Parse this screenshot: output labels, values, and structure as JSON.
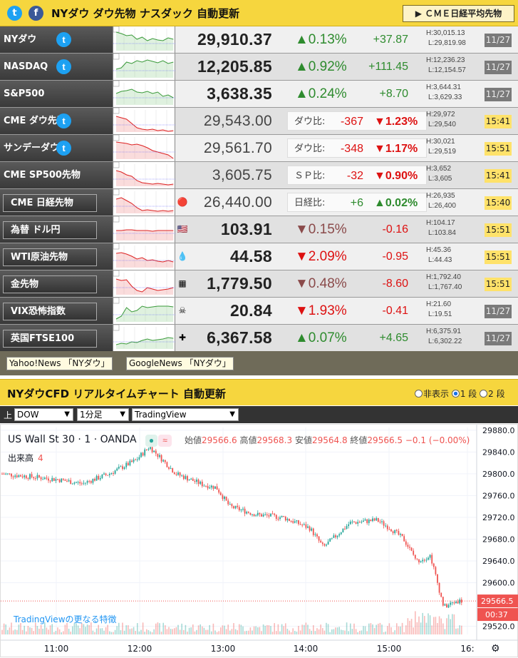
{
  "header": {
    "title": "NYダウ ダウ先物 ナスダック 自動更新",
    "cme_button": "ＣＭＥ日経平均先物",
    "cme_arrow": "▶"
  },
  "rows": [
    {
      "name": "NYダウ",
      "price": "29,910.37",
      "pct": "▲0.13%",
      "chg": "+37.87",
      "high": "H:30,015.13",
      "low": "L:29,819.98",
      "time": "11/27"
    },
    {
      "name": "NASDAQ",
      "price": "12,205.85",
      "pct": "▲0.92%",
      "chg": "+111.45",
      "high": "H:12,236.23",
      "low": "L:12,154.57",
      "time": "11/27"
    },
    {
      "name": "S&P500",
      "price": "3,638.35",
      "pct": "▲0.24%",
      "chg": "+8.70",
      "high": "H:3,644.31",
      "low": "L:3,629.33",
      "time": "11/27"
    },
    {
      "name": "CME ダウ先物",
      "price": "29,543.00",
      "cmp_label": "ダウ比:",
      "cmp_diff": "-367",
      "cmp_pct": "▼1.23%",
      "high": "H:29,972",
      "low": "L:29,540",
      "time": "15:41"
    },
    {
      "name": "サンデーダウ",
      "price": "29,561.70",
      "cmp_label": "ダウ比:",
      "cmp_diff": "-348",
      "cmp_pct": "▼1.17%",
      "high": "H:30,021",
      "low": "L:29,519",
      "time": "15:51"
    },
    {
      "name": "CME SP500先物",
      "price": "3,605.75",
      "cmp_label": "ＳＰ比:",
      "cmp_diff": "-32",
      "cmp_pct": "▼0.90%",
      "high": "H:3,652",
      "low": "L:3,605",
      "time": "15:41"
    },
    {
      "name": "CME 日経先物",
      "price": "26,440.00",
      "cmp_label": "日経比:",
      "cmp_diff": "+6",
      "cmp_pct": "▲0.02%",
      "high": "H:26,935",
      "low": "L:26,400",
      "time": "15:40"
    },
    {
      "name": "為替 ドル円",
      "price": "103.91",
      "pct": "▼0.15%",
      "chg": "-0.16",
      "high": "H:104.17",
      "low": "L:103.84",
      "time": "15:51"
    },
    {
      "name": "WTI原油先物",
      "price": "44.58",
      "pct": "▼2.09%",
      "chg": "-0.95",
      "high": "H:45.36",
      "low": "L:44.43",
      "time": "15:51"
    },
    {
      "name": "金先物",
      "price": "1,779.50",
      "pct": "▼0.48%",
      "chg": "-8.60",
      "high": "H:1,792.40",
      "low": "L:1,767.40",
      "time": "15:51"
    },
    {
      "name": "VIX恐怖指数",
      "price": "20.84",
      "pct": "▼1.93%",
      "chg": "-0.41",
      "high": "H:21.60",
      "low": "L:19.51",
      "time": "11/27"
    },
    {
      "name": "英国FTSE100",
      "price": "6,367.58",
      "pct": "▲0.07%",
      "chg": "+4.65",
      "high": "H:6,375.91",
      "low": "L:6,302.22",
      "time": "11/27"
    }
  ],
  "links": {
    "yahoo": "Yahoo!News 「NYダウ」",
    "google": "GoogleNews 「NYダウ」"
  },
  "section2": {
    "title": "NYダウCFD リアルタイムチャート 自動更新",
    "radio_hide": "非表示",
    "radio_1": "1 段",
    "radio_2": "2 段"
  },
  "controls": {
    "prefix": "上",
    "symbol": "DOW",
    "interval": "1分足",
    "source": "TradingView"
  },
  "chart": {
    "symbol_line": "US Wall St 30 · 1 · OANDA",
    "o_label": "始値",
    "o": "29566.6",
    "h_label": "高値",
    "h": "29568.3",
    "l_label": "安値",
    "l": "29564.8",
    "c_label": "終値",
    "c": "29566.5",
    "change": "−0.1 (−0.00%)",
    "volume_label": "出来高",
    "volume": "4",
    "promo": "TradingViewの更なる特徴",
    "last_price": "29566.5",
    "countdown": "00:37",
    "y_ticks": [
      "29880.0",
      "29840.0",
      "29800.0",
      "29760.0",
      "29720.0",
      "29680.0",
      "29640.0",
      "29600.0",
      "29520.0"
    ],
    "x_ticks": [
      "11:00",
      "12:00",
      "13:00",
      "14:00",
      "15:00",
      "16:"
    ]
  },
  "chart_data": {
    "type": "candlestick",
    "title": "US Wall St 30 · 1 · OANDA",
    "x": [
      "10:20",
      "10:40",
      "11:00",
      "11:20",
      "11:40",
      "12:00",
      "12:10",
      "12:30",
      "12:50",
      "13:00",
      "13:10",
      "13:30",
      "13:50",
      "14:10",
      "14:20",
      "14:40",
      "15:00",
      "15:10",
      "15:20",
      "15:30",
      "15:40",
      "15:50",
      "16:00"
    ],
    "y": [
      29800,
      29795,
      29790,
      29782,
      29800,
      29825,
      29850,
      29800,
      29780,
      29775,
      29740,
      29725,
      29720,
      29700,
      29665,
      29710,
      29715,
      29700,
      29680,
      29640,
      29650,
      29555,
      29566.5
    ],
    "ylim": [
      29505,
      29885
    ],
    "colors": {
      "up": "#26a69a",
      "down": "#ef5350"
    }
  }
}
